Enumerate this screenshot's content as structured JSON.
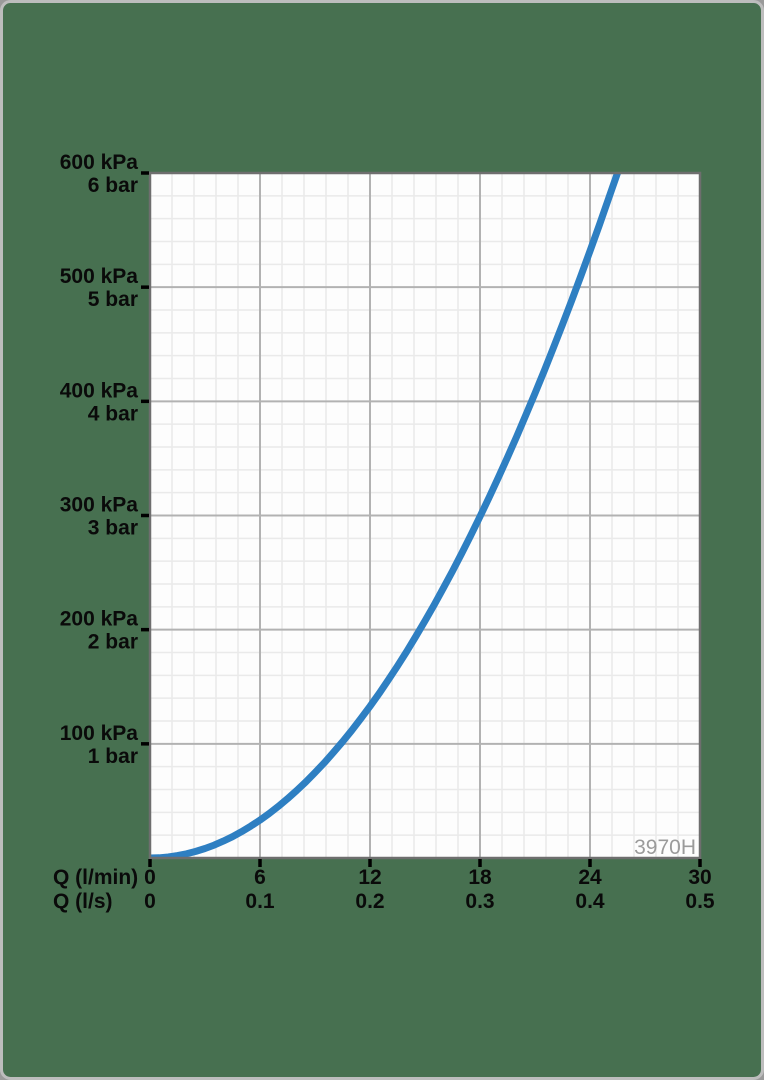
{
  "watermark": "3970H",
  "colors": {
    "background": "#477050",
    "frame_border": "#bdbdbd",
    "plot_background": "#fdfdfd",
    "grid_minor": "#eaeaea",
    "grid_major": "#b2b2b2",
    "plot_border": "#6e6e6e",
    "tick_color": "#000000",
    "label_color": "#0a0a0a",
    "curve": "#2e7fc2",
    "watermark_color": "#9b9b9b"
  },
  "chart_data": {
    "type": "line",
    "title": "",
    "description": "Pressure loss versus flow rate curve, product code 3970H",
    "grid": true,
    "legend": false,
    "x_axis": {
      "rows": [
        {
          "label": "Q (l/min)",
          "tick_labels": [
            "0",
            "6",
            "12",
            "18",
            "24",
            "30"
          ]
        },
        {
          "label": "Q (l/s)",
          "tick_labels": [
            "0",
            "0.1",
            "0.2",
            "0.3",
            "0.4",
            "0.5"
          ]
        }
      ],
      "range_lmin": [
        0,
        30
      ],
      "major_step_lmin": 6,
      "minor_per_major": 5
    },
    "y_axis": {
      "range_kpa": [
        0,
        600
      ],
      "major_step_kpa": 100,
      "minor_per_major": 5,
      "tick_labels": [
        {
          "value": 600,
          "kpa": "600 kPa",
          "bar": "6 bar"
        },
        {
          "value": 500,
          "kpa": "500 kPa",
          "bar": "5 bar"
        },
        {
          "value": 400,
          "kpa": "400 kPa",
          "bar": "4 bar"
        },
        {
          "value": 300,
          "kpa": "300 kPa",
          "bar": "3 bar"
        },
        {
          "value": 200,
          "kpa": "200 kPa",
          "bar": "2 bar"
        },
        {
          "value": 100,
          "kpa": "100 kPa",
          "bar": "1 bar"
        }
      ]
    },
    "series": [
      {
        "name": "pressure-loss-curve",
        "color": "#2e7fc2",
        "points_q_lmin_p_kpa": [
          [
            0,
            0
          ],
          [
            0.5,
            0.2
          ],
          [
            1,
            0.9
          ],
          [
            1.5,
            2.1
          ],
          [
            2,
            3.7
          ],
          [
            2.5,
            5.8
          ],
          [
            3,
            8.3
          ],
          [
            3.5,
            11.3
          ],
          [
            4,
            14.8
          ],
          [
            4.5,
            18.7
          ],
          [
            5,
            23.1
          ],
          [
            5.5,
            27.9
          ],
          [
            6,
            33.2
          ],
          [
            6.5,
            39.0
          ],
          [
            7,
            45.2
          ],
          [
            7.5,
            51.9
          ],
          [
            8,
            59.1
          ],
          [
            8.5,
            66.7
          ],
          [
            9,
            74.8
          ],
          [
            9.5,
            83.3
          ],
          [
            10,
            92.3
          ],
          [
            10.5,
            101.8
          ],
          [
            11,
            111.7
          ],
          [
            11.5,
            122.1
          ],
          [
            12,
            132.9
          ],
          [
            12.5,
            144.2
          ],
          [
            13,
            156.0
          ],
          [
            13.5,
            168.2
          ],
          [
            14,
            180.9
          ],
          [
            14.5,
            194.1
          ],
          [
            15,
            207.7
          ],
          [
            15.5,
            221.8
          ],
          [
            16,
            236.3
          ],
          [
            16.5,
            251.3
          ],
          [
            17,
            266.8
          ],
          [
            17.5,
            282.7
          ],
          [
            18,
            299.1
          ],
          [
            18.5,
            315.9
          ],
          [
            19,
            333.2
          ],
          [
            19.5,
            351.0
          ],
          [
            20,
            369.2
          ],
          [
            20.5,
            387.9
          ],
          [
            21,
            407.0
          ],
          [
            21.5,
            426.7
          ],
          [
            22,
            446.7
          ],
          [
            22.5,
            467.3
          ],
          [
            23,
            488.3
          ],
          [
            23.5,
            509.7
          ],
          [
            24,
            531.7
          ],
          [
            24.5,
            554.0
          ],
          [
            25,
            576.9
          ],
          [
            25.5,
            600
          ]
        ]
      }
    ]
  }
}
